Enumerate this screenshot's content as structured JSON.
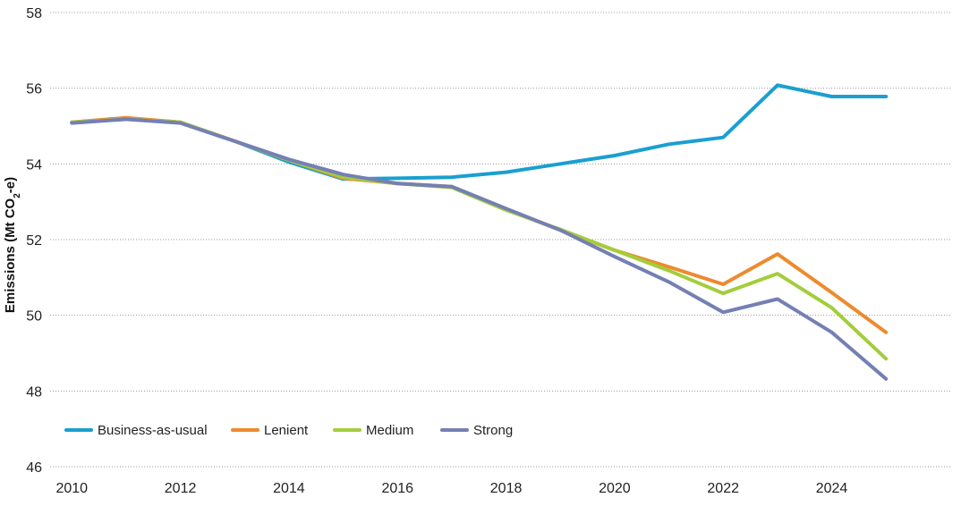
{
  "chart_data": {
    "type": "line",
    "title": "",
    "xlabel": "",
    "ylabel": {
      "prefix": "Emissions (Mt CO",
      "subscript": "2",
      "suffix": "-e)"
    },
    "xlim": [
      2009.6,
      2026.2
    ],
    "ylim": [
      46,
      58
    ],
    "x_ticks": [
      2010,
      2012,
      2014,
      2016,
      2018,
      2020,
      2022,
      2024
    ],
    "y_ticks": [
      46,
      48,
      50,
      52,
      54,
      56,
      58
    ],
    "grid": "horizontal-dotted",
    "legend_position": "bottom-left",
    "x": [
      2010,
      2011,
      2012,
      2013,
      2014,
      2015,
      2016,
      2017,
      2018,
      2019,
      2020,
      2021,
      2022,
      2023,
      2024,
      2025
    ],
    "series": [
      {
        "name": "Business-as-usual",
        "color": "#1a9fd0",
        "values": [
          55.1,
          55.2,
          55.1,
          54.6,
          54.05,
          53.6,
          53.62,
          53.65,
          53.78,
          54.0,
          54.22,
          54.52,
          54.7,
          56.08,
          55.78,
          55.78
        ]
      },
      {
        "name": "Lenient",
        "color": "#ee8a2d",
        "values": [
          55.1,
          55.22,
          55.1,
          54.6,
          54.1,
          53.62,
          53.48,
          53.4,
          52.8,
          52.25,
          51.72,
          51.28,
          50.82,
          51.62,
          50.6,
          49.55
        ]
      },
      {
        "name": "Medium",
        "color": "#a3cd3b",
        "values": [
          55.1,
          55.18,
          55.1,
          54.6,
          54.1,
          53.65,
          53.48,
          53.38,
          52.78,
          52.27,
          51.72,
          51.18,
          50.58,
          51.1,
          50.2,
          48.85
        ]
      },
      {
        "name": "Strong",
        "color": "#7480b3",
        "values": [
          55.08,
          55.18,
          55.08,
          54.6,
          54.12,
          53.72,
          53.48,
          53.4,
          52.82,
          52.25,
          51.55,
          50.88,
          50.08,
          50.43,
          49.55,
          48.32
        ]
      }
    ]
  }
}
